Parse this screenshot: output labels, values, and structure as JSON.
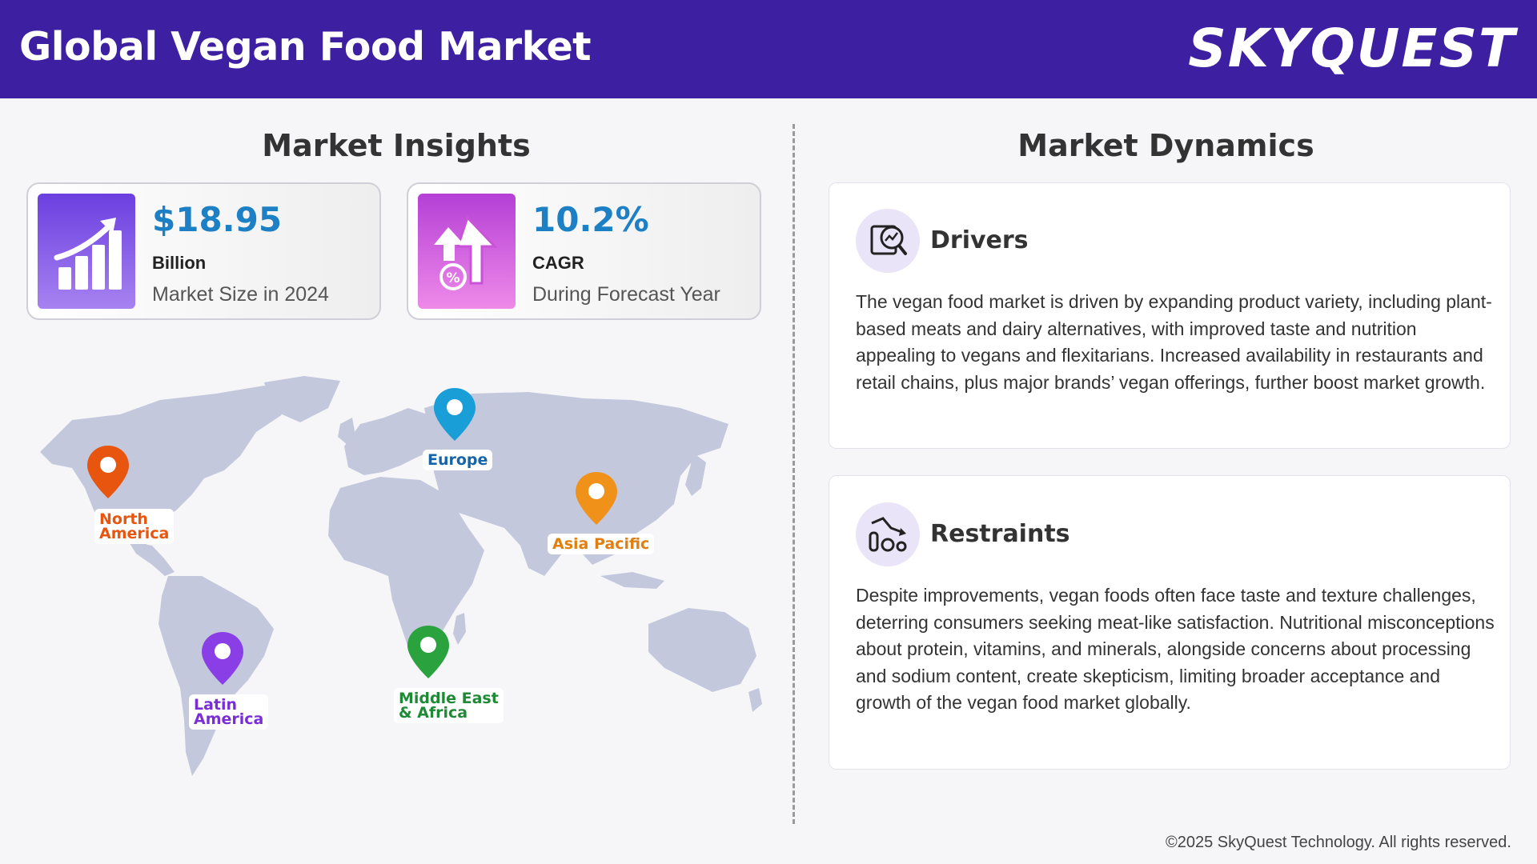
{
  "header": {
    "title": "Global Vegan Food Market",
    "brand": "SKYQUEST",
    "background_color": "#3d1fa1"
  },
  "insights": {
    "title": "Market Insights",
    "cards": [
      {
        "value": "$18.95",
        "unit": "Billion",
        "description": "Market Size in 2024",
        "icon": "bar-growth-icon",
        "icon_gradient": [
          "#6b3fe0",
          "#a782f0"
        ]
      },
      {
        "value": "10.2%",
        "unit": "CAGR",
        "description": "During Forecast Year",
        "icon": "percent-arrows-up-icon",
        "icon_gradient": [
          "#b53fd6",
          "#ee8ae9"
        ]
      }
    ]
  },
  "map": {
    "regions": [
      {
        "name": "North America",
        "line1": "North",
        "line2": "America",
        "color": "#e8550f",
        "icon": "map-pin-icon"
      },
      {
        "name": "Europe",
        "line1": "Europe",
        "line2": "",
        "color": "#1565a8",
        "icon": "map-pin-icon"
      },
      {
        "name": "Asia Pacific",
        "line1": "Asia Pacific",
        "line2": "",
        "color": "#e07f10",
        "icon": "map-pin-icon"
      },
      {
        "name": "Latin America",
        "line1": "Latin",
        "line2": "America",
        "color": "#7a2fd6",
        "icon": "map-pin-icon"
      },
      {
        "name": "Middle East & Africa",
        "line1": "Middle East",
        "line2": "& Africa",
        "color": "#1f8a36",
        "icon": "map-pin-icon"
      }
    ]
  },
  "dynamics": {
    "title": "Market Dynamics",
    "drivers": {
      "title": "Drivers",
      "icon": "chart-search-icon",
      "text": "The vegan food market is driven by expanding product variety, including plant-based meats and dairy alternatives, with improved taste and nutrition appealing to vegans and flexitarians. Increased availability in restaurants and retail chains, plus major brands’ vegan offerings, further boost market growth."
    },
    "restraints": {
      "title": "Restraints",
      "icon": "declining-chart-icon",
      "text": "Despite improvements, vegan foods often face taste and texture challenges, deterring consumers seeking meat-like satisfaction. Nutritional misconceptions about protein, vitamins, and minerals, alongside concerns about processing and sodium content, create skepticism, limiting broader acceptance and growth of the vegan food market globally."
    }
  },
  "footer": {
    "copyright": "©2025 SkyQuest Technology. All rights reserved."
  }
}
